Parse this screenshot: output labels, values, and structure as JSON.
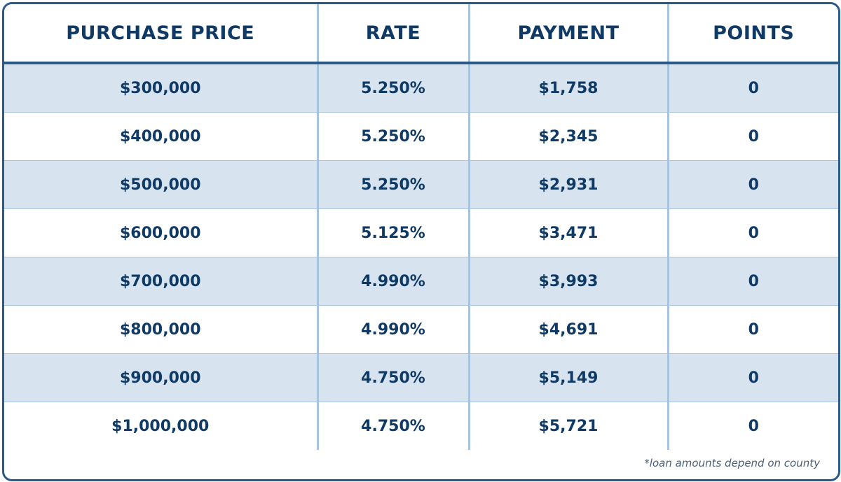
{
  "table": {
    "headers": {
      "purchase_price": "PURCHASE PRICE",
      "rate": "RATE",
      "payment": "PAYMENT",
      "points": "POINTS"
    },
    "rows": [
      {
        "purchase_price": "$300,000",
        "rate": "5.250%",
        "payment": "$1,758",
        "points": "0"
      },
      {
        "purchase_price": "$400,000",
        "rate": "5.250%",
        "payment": "$2,345",
        "points": "0"
      },
      {
        "purchase_price": "$500,000",
        "rate": "5.250%",
        "payment": "$2,931",
        "points": "0"
      },
      {
        "purchase_price": "$600,000",
        "rate": "5.125%",
        "payment": "$3,471",
        "points": "0"
      },
      {
        "purchase_price": "$700,000",
        "rate": "4.990%",
        "payment": "$3,993",
        "points": "0"
      },
      {
        "purchase_price": "$800,000",
        "rate": "4.990%",
        "payment": "$4,691",
        "points": "0"
      },
      {
        "purchase_price": "$900,000",
        "rate": "4.750%",
        "payment": "$5,149",
        "points": "0"
      },
      {
        "purchase_price": "$1,000,000",
        "rate": "4.750%",
        "payment": "$5,721",
        "points": "0"
      }
    ]
  },
  "footnote": "*loan amounts depend on county",
  "colors": {
    "border": "#2a5a8a",
    "header_text": "#0f3a66",
    "shaded_row": "#d7e4ef",
    "divider": "#a7c3e0"
  }
}
